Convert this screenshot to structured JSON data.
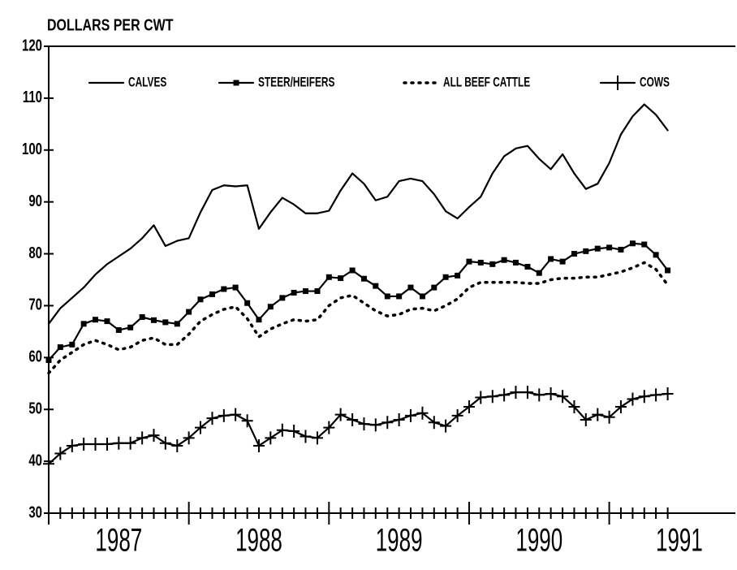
{
  "chart_data": {
    "type": "line",
    "ylabel": "DOLLARS PER CWT",
    "x": [
      1987,
      1987.083,
      1987.167,
      1987.25,
      1987.333,
      1987.417,
      1987.5,
      1987.583,
      1987.667,
      1987.75,
      1987.833,
      1987.917,
      1988,
      1988.083,
      1988.167,
      1988.25,
      1988.333,
      1988.417,
      1988.5,
      1988.583,
      1988.667,
      1988.75,
      1988.833,
      1988.917,
      1989,
      1989.083,
      1989.167,
      1989.25,
      1989.333,
      1989.417,
      1989.5,
      1989.583,
      1989.667,
      1989.75,
      1989.833,
      1989.917,
      1990,
      1990.083,
      1990.167,
      1990.25,
      1990.333,
      1990.417,
      1990.5,
      1990.583,
      1990.667,
      1990.75,
      1990.833,
      1990.917,
      1991,
      1991.083,
      1991.167,
      1991.25,
      1991.333,
      1991.417
    ],
    "series": [
      {
        "name": "CALVES",
        "color": "#000000",
        "style": "solid",
        "marker": "none",
        "values": [
          66.5,
          69.5,
          71.5,
          73.5,
          76,
          78,
          79.5,
          81,
          83,
          85.5,
          81.5,
          82.5,
          83,
          88,
          92.3,
          93.2,
          93,
          93.2,
          84.8,
          88,
          90.8,
          89.5,
          87.8,
          87.8,
          88.3,
          92.2,
          95.5,
          93.5,
          90.3,
          91,
          94,
          94.5,
          94,
          91.5,
          88.2,
          86.8,
          89,
          91,
          95.5,
          98.8,
          100.3,
          100.8,
          98.3,
          96.3,
          99.2,
          95.5,
          92.5,
          93.5,
          97.5,
          103,
          106.5,
          108.8,
          106.8,
          103.8
        ]
      },
      {
        "name": "STEER/HEIFERS",
        "color": "#000000",
        "style": "solid",
        "marker": "square",
        "values": [
          59.5,
          62,
          62.5,
          66.5,
          67.3,
          67,
          65.3,
          65.8,
          67.8,
          67.2,
          66.8,
          66.5,
          68.8,
          71.2,
          72.2,
          73.2,
          73.5,
          70.5,
          67.3,
          69.8,
          71.5,
          72.5,
          72.8,
          72.8,
          75.5,
          75.3,
          76.8,
          75.2,
          73.8,
          71.8,
          71.8,
          73.5,
          71.8,
          73.5,
          75.5,
          75.8,
          78.5,
          78.3,
          78,
          78.8,
          78.3,
          77.5,
          76.3,
          79,
          78.5,
          80,
          80.5,
          81,
          81.2,
          80.8,
          82,
          81.8,
          79.8,
          76.8
        ]
      },
      {
        "name": "ALL BEEF CATTLE",
        "color": "#000000",
        "style": "dotted",
        "marker": "none",
        "values": [
          57,
          59.5,
          61,
          62.5,
          63.3,
          62.5,
          61.5,
          62,
          63.3,
          63.8,
          62.5,
          62.5,
          64.5,
          67,
          68.3,
          69.3,
          69.8,
          67.5,
          64,
          65.5,
          66.5,
          67.3,
          67,
          67.3,
          70,
          71.5,
          72,
          70.5,
          69,
          68,
          68.3,
          69.3,
          69.5,
          69,
          70,
          71.3,
          73.5,
          74.5,
          74.5,
          74.5,
          74.5,
          74.3,
          74.3,
          75,
          75.3,
          75.3,
          75.5,
          75.5,
          76,
          76.5,
          77.3,
          78.3,
          77,
          74
        ]
      },
      {
        "name": "COWS",
        "color": "#000000",
        "style": "solid",
        "marker": "plus",
        "values": [
          39.5,
          41.5,
          43,
          43.3,
          43.3,
          43.3,
          43.5,
          43.5,
          44.5,
          45,
          43.5,
          43,
          44.5,
          46.5,
          48.3,
          48.8,
          49,
          47.8,
          43,
          44.5,
          46,
          45.8,
          44.8,
          44.5,
          46.5,
          49,
          48,
          47.2,
          47,
          47.5,
          48,
          48.8,
          49.3,
          47.5,
          46.8,
          48.8,
          50.5,
          52.3,
          52.5,
          52.8,
          53.3,
          53.3,
          52.8,
          53,
          52.5,
          50.5,
          48,
          49,
          48.5,
          50.5,
          52,
          52.5,
          52.8,
          53
        ]
      }
    ],
    "xlim": [
      1987,
      1991.9
    ],
    "xticks": [
      {
        "value": 1987.5,
        "label": "1987"
      },
      {
        "value": 1988.5,
        "label": "1988"
      },
      {
        "value": 1989.5,
        "label": "1989"
      },
      {
        "value": 1990.5,
        "label": "1990"
      },
      {
        "value": 1991.5,
        "label": "1991"
      }
    ],
    "ylim": [
      30,
      120
    ],
    "yticks": [
      30,
      40,
      50,
      60,
      70,
      80,
      90,
      100,
      110,
      120
    ],
    "grid": false,
    "legend": "top"
  }
}
